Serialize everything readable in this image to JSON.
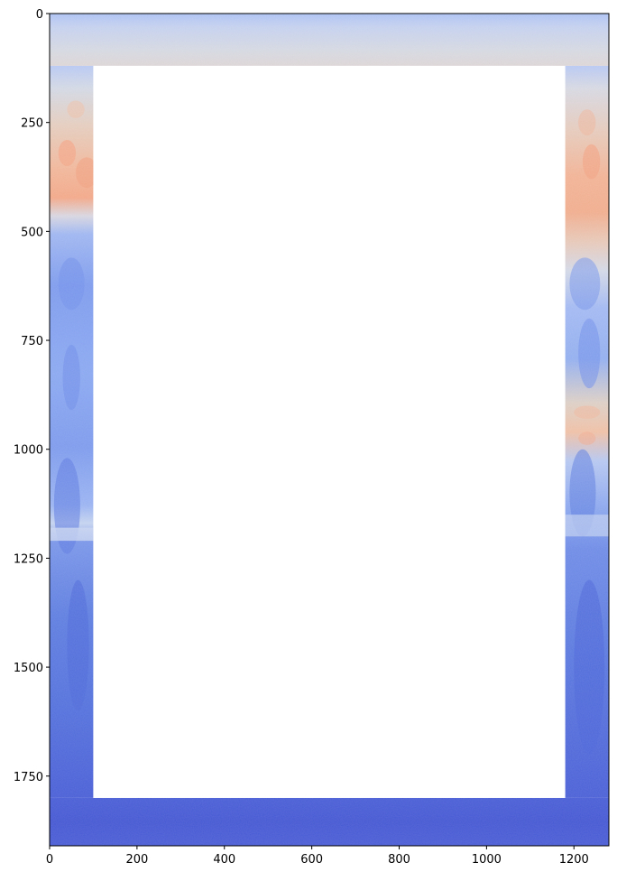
{
  "chart_data": {
    "type": "heatmap",
    "title": "",
    "xlabel": "",
    "ylabel": "",
    "colormap": "coolwarm",
    "image_extent": {
      "x": [
        0,
        1280
      ],
      "y": [
        0,
        1910
      ]
    },
    "masked_region": {
      "x": [
        100,
        1180
      ],
      "y": [
        120,
        1800
      ],
      "fill": "white"
    },
    "y_inverted": true,
    "grid": false,
    "legend": "none",
    "xlim": [
      0,
      1280
    ],
    "ylim": [
      1910,
      0
    ],
    "xticks": [
      0,
      200,
      400,
      600,
      800,
      1000,
      1200
    ],
    "yticks": [
      0,
      250,
      500,
      750,
      1000,
      1250,
      1500,
      1750
    ],
    "colors": {
      "top_band": "#d0d7e6",
      "top_light_blue": "#b5c9f4",
      "warm_peak": "#f0aa8a",
      "warm_light": "#ecc7b3",
      "mid_blue": "#8caaf2",
      "deep_blue": "#5a78dc",
      "bottom_blue": "#4659d4",
      "border_light": "#c6d4f2"
    }
  }
}
